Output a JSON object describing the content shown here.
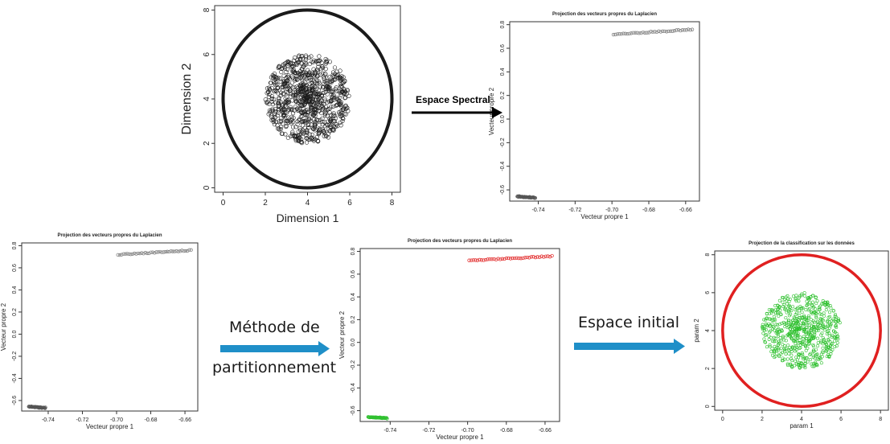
{
  "colors": {
    "black": "#1a1a1a",
    "red": "#e02020",
    "green": "#2fc02f",
    "arrow_blue": "#1f8fc8",
    "dark_arrow": "#000000"
  },
  "arrows": {
    "a1_label": "Espace Spectral",
    "a2_line1": "Méthode de",
    "a2_line2": "partitionnement",
    "a3_label": "Espace initial"
  },
  "chart_data": [
    {
      "id": "p1",
      "type": "scatter",
      "title": "",
      "xlabel": "Dimension 1",
      "ylabel": "Dimension 2",
      "xlim": [
        -0.4,
        8.4
      ],
      "ylim": [
        -0.2,
        8.2
      ],
      "xticks": [
        "0",
        "2",
        "4",
        "6",
        "8"
      ],
      "yticks": [
        "0",
        "2",
        "4",
        "6",
        "8"
      ],
      "series": [
        {
          "shape": "ring",
          "center": [
            4,
            4
          ],
          "radius": 4,
          "color": "#1a1a1a"
        },
        {
          "shape": "disc",
          "center": [
            4,
            4
          ],
          "radius": 2,
          "color": "#1a1a1a"
        }
      ]
    },
    {
      "id": "p2",
      "type": "scatter",
      "title": "Projection des vecteurs propres du Laplacien",
      "xlabel": "Vecteur propre 1",
      "ylabel": "Vecteur propre 2",
      "xlim": [
        -0.7555,
        -0.6525
      ],
      "ylim": [
        -0.695,
        0.825
      ],
      "xticks": [
        "-0.74",
        "-0.72",
        "-0.70",
        "-0.68",
        "-0.66"
      ],
      "yticks": [
        "-0.6",
        "-0.4",
        "-0.2",
        "0.0",
        "0.2",
        "0.4",
        "0.6",
        "0.8"
      ],
      "series": [
        {
          "shape": "segment",
          "from": [
            -0.7514,
            -0.655
          ],
          "to": [
            -0.7416,
            -0.667
          ],
          "color": "#555555"
        },
        {
          "shape": "segment",
          "from": [
            -0.6992,
            0.718
          ],
          "to": [
            -0.6564,
            0.758
          ],
          "color": "#777777"
        }
      ]
    },
    {
      "id": "p3",
      "type": "scatter",
      "title": "Projection des vecteurs propres du Laplacien",
      "xlabel": "Vecteur propre 1",
      "ylabel": "Vecteur propre 2",
      "xlim": [
        -0.7555,
        -0.6525
      ],
      "ylim": [
        -0.695,
        0.825
      ],
      "xticks": [
        "-0.74",
        "-0.72",
        "-0.70",
        "-0.68",
        "-0.66"
      ],
      "yticks": [
        "-0.6",
        "-0.4",
        "-0.2",
        "0.0",
        "0.2",
        "0.4",
        "0.6",
        "0.8"
      ],
      "series": [
        {
          "shape": "segment",
          "from": [
            -0.7514,
            -0.655
          ],
          "to": [
            -0.7416,
            -0.667
          ],
          "color": "#555555"
        },
        {
          "shape": "segment",
          "from": [
            -0.6992,
            0.718
          ],
          "to": [
            -0.6564,
            0.758
          ],
          "color": "#777777"
        }
      ]
    },
    {
      "id": "p4",
      "type": "scatter",
      "title": "Projection des vecteurs propres du Laplacien",
      "xlabel": "Vecteur propre 1",
      "ylabel": "Vecteur propre 2",
      "xlim": [
        -0.7555,
        -0.6525
      ],
      "ylim": [
        -0.695,
        0.825
      ],
      "xticks": [
        "-0.74",
        "-0.72",
        "-0.70",
        "-0.68",
        "-0.66"
      ],
      "yticks": [
        "-0.6",
        "-0.4",
        "-0.2",
        "0.0",
        "0.2",
        "0.4",
        "0.6",
        "0.8"
      ],
      "series": [
        {
          "shape": "segment",
          "from": [
            -0.7514,
            -0.655
          ],
          "to": [
            -0.7416,
            -0.667
          ],
          "color": "#2fc02f"
        },
        {
          "shape": "segment",
          "from": [
            -0.6992,
            0.718
          ],
          "to": [
            -0.6564,
            0.758
          ],
          "color": "#e02020"
        }
      ]
    },
    {
      "id": "p5",
      "type": "scatter",
      "title": "Projection de la classification sur les données",
      "xlabel": "param 1",
      "ylabel": "param 2",
      "xlim": [
        -0.4,
        8.4
      ],
      "ylim": [
        -0.2,
        8.2
      ],
      "xticks": [
        "0",
        "2",
        "4",
        "6",
        "8"
      ],
      "yticks": [
        "0",
        "2",
        "4",
        "6",
        "8"
      ],
      "series": [
        {
          "shape": "ring",
          "center": [
            4,
            4
          ],
          "radius": 4,
          "color": "#e02020"
        },
        {
          "shape": "disc",
          "center": [
            4,
            4
          ],
          "radius": 2,
          "color": "#2fc02f"
        }
      ]
    }
  ]
}
